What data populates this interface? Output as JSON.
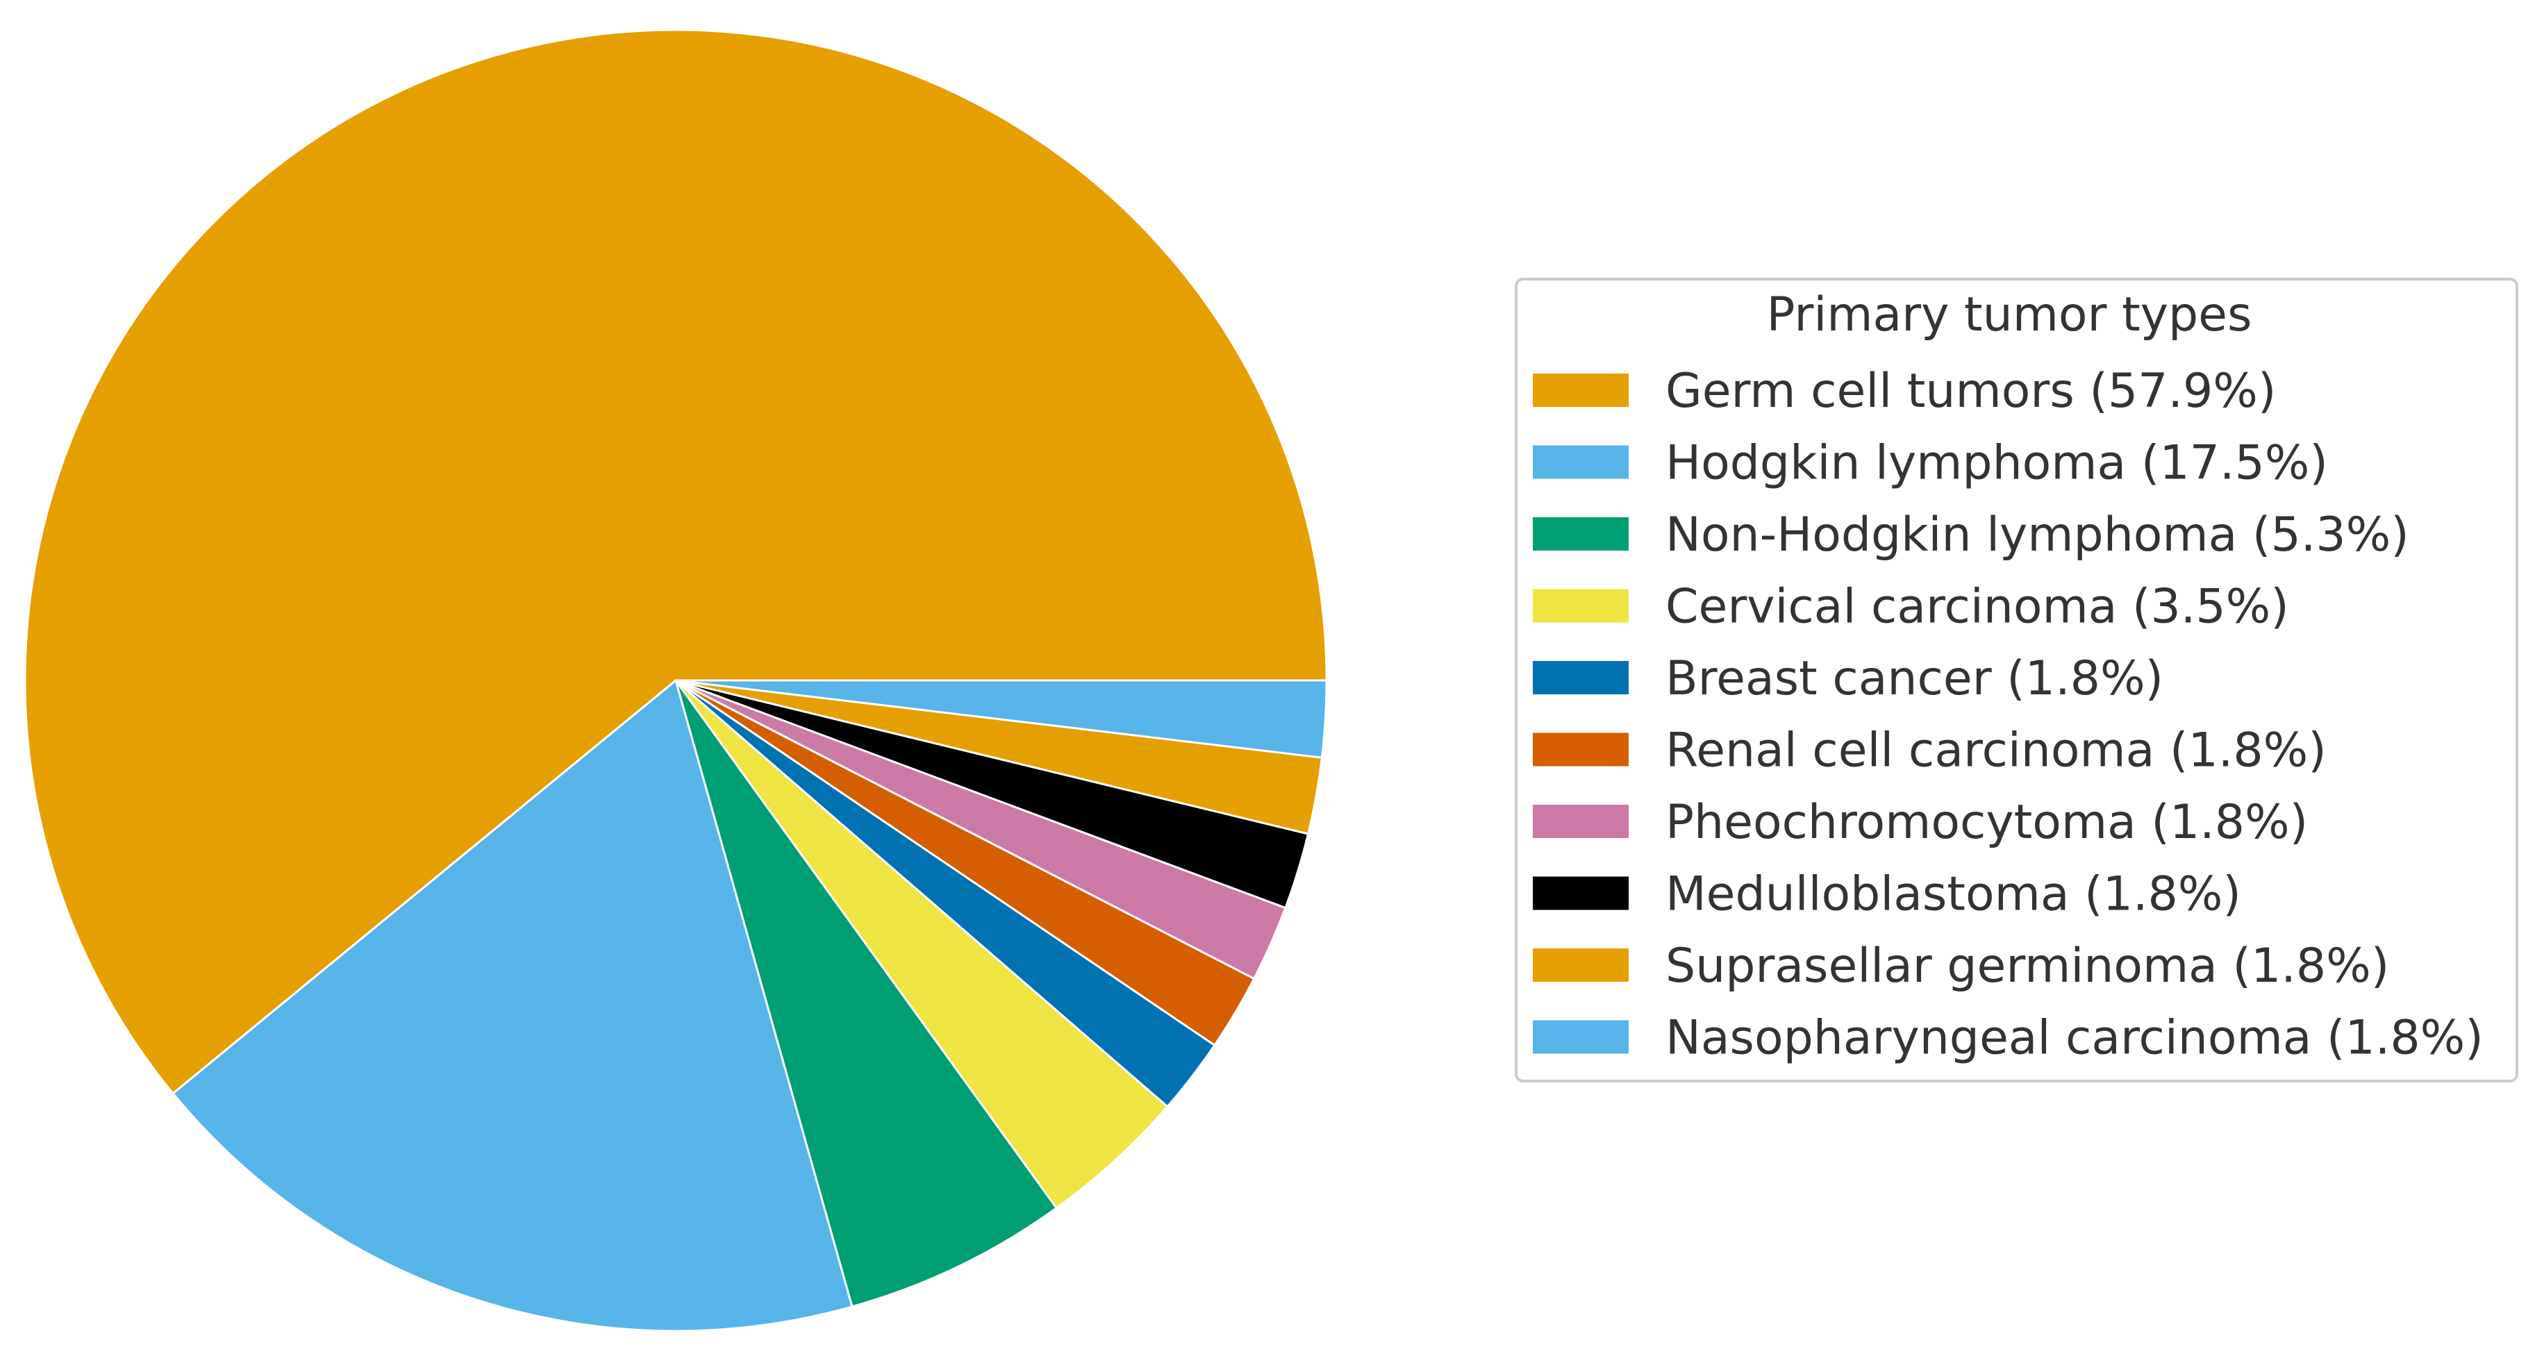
{
  "chart_data": {
    "type": "pie",
    "title": "",
    "start_angle_deg": 0,
    "direction": "counterclockwise",
    "slices": [
      {
        "label": "Germ cell tumors (57.9%)",
        "value": 57.9,
        "color": "#E69F00"
      },
      {
        "label": "Hodgkin lymphoma (17.5%)",
        "value": 17.5,
        "color": "#56B4E9"
      },
      {
        "label": "Non-Hodgkin lymphoma (5.3%)",
        "value": 5.3,
        "color": "#009E73"
      },
      {
        "label": "Cervical carcinoma (3.5%)",
        "value": 3.5,
        "color": "#F0E442"
      },
      {
        "label": "Breast cancer (1.8%)",
        "value": 1.8,
        "color": "#0072B2"
      },
      {
        "label": "Renal cell carcinoma (1.8%)",
        "value": 1.8,
        "color": "#D55E00"
      },
      {
        "label": "Pheochromocytoma (1.8%)",
        "value": 1.8,
        "color": "#CC79A7"
      },
      {
        "label": "Medulloblastoma (1.8%)",
        "value": 1.8,
        "color": "#000000"
      },
      {
        "label": "Suprasellar germinoma (1.8%)",
        "value": 1.8,
        "color": "#E69F00"
      },
      {
        "label": "Nasopharyngeal carcinoma (1.8%)",
        "value": 1.8,
        "color": "#56B4E9"
      }
    ],
    "legend": {
      "title": "Primary tumor types",
      "placement": "right"
    }
  }
}
